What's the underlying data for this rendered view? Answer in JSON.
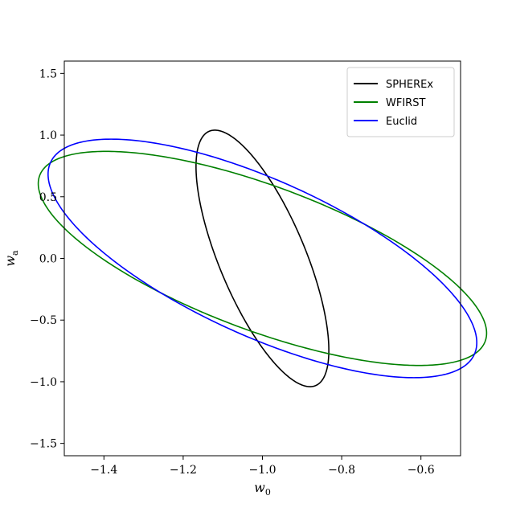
{
  "chart_data": {
    "type": "ellipse",
    "xlim": [
      -1.5,
      -0.5
    ],
    "ylim": [
      -1.6,
      1.6
    ],
    "x_ticks": [
      -1.4,
      -1.2,
      -1.0,
      -0.8,
      -0.6
    ],
    "x_tick_labels": [
      "−1.4",
      "−1.2",
      "−1.0",
      "−0.8",
      "−0.6"
    ],
    "y_ticks": [
      -1.5,
      -1.0,
      -0.5,
      0.0,
      0.5,
      1.0,
      1.5
    ],
    "y_tick_labels": [
      "−1.5",
      "−1.0",
      "−0.5",
      "0.0",
      "0.5",
      "1.0",
      "1.5"
    ],
    "xlabel": {
      "base": "w",
      "sub": "0"
    },
    "ylabel": {
      "base": "w",
      "sub": "a"
    },
    "legend_position": "top-right",
    "grid": false,
    "series": [
      {
        "name": "SPHEREx",
        "color": "#000000",
        "center": [
          -1.0,
          0.0
        ],
        "extreme_x": [
          [
            -1.117,
            1.037
          ],
          [
            -0.883,
            -1.037
          ]
        ],
        "extreme_y": [
          [
            -1.12,
            1.04
          ],
          [
            -0.88,
            -1.04
          ]
        ]
      },
      {
        "name": "WFIRST",
        "color": "#008000",
        "center": [
          -1.0,
          0.0
        ],
        "extreme_x": [
          [
            -1.405,
            0.866
          ],
          [
            -0.595,
            -0.866
          ]
        ],
        "extreme_y": [
          [
            -1.395,
            0.868
          ],
          [
            -0.605,
            -0.868
          ]
        ]
      },
      {
        "name": "Euclid",
        "color": "#0000ff",
        "center": [
          -1.0,
          0.0
        ],
        "extreme_x": [
          [
            -1.383,
            0.966
          ],
          [
            -0.617,
            -0.966
          ]
        ],
        "extreme_y": [
          [
            -1.382,
            0.967
          ],
          [
            -0.618,
            -0.967
          ]
        ]
      }
    ]
  }
}
